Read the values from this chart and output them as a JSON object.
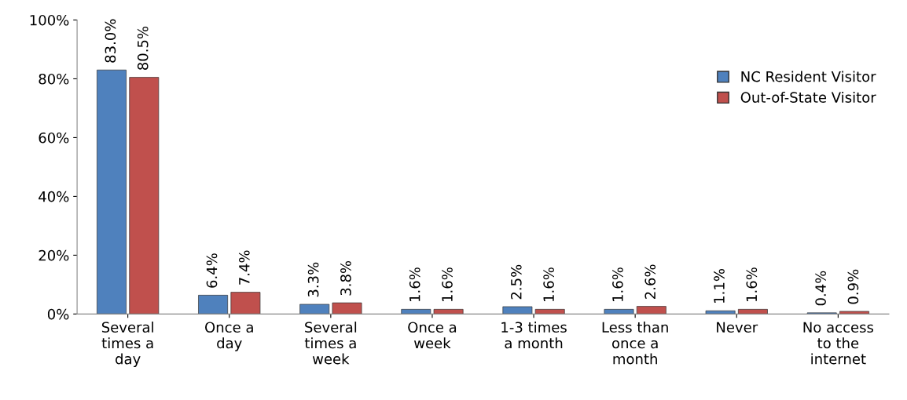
{
  "chart_data": {
    "type": "bar",
    "categories": [
      "Several\ntimes a\nday",
      "Once a\nday",
      "Several\ntimes a\nweek",
      "Once a\nweek",
      "1-3 times\na month",
      "Less than\nonce a\nmonth",
      "Never",
      "No access\nto the\ninternet"
    ],
    "series": [
      {
        "name": "NC Resident Visitor",
        "color": "#4f81bd",
        "values": [
          83.0,
          6.4,
          3.3,
          1.6,
          2.5,
          1.6,
          1.1,
          0.4
        ],
        "value_labels": [
          "83.0%",
          "6.4%",
          "3.3%",
          "1.6%",
          "2.5%",
          "1.6%",
          "1.1%",
          "0.4%"
        ]
      },
      {
        "name": "Out-of-State Visitor",
        "color": "#c0504d",
        "values": [
          80.5,
          7.4,
          3.8,
          1.6,
          1.6,
          2.6,
          1.6,
          0.9
        ],
        "value_labels": [
          "80.5%",
          "7.4%",
          "3.8%",
          "1.6%",
          "1.6%",
          "2.6%",
          "1.6%",
          "0.9%"
        ]
      }
    ],
    "ylim": [
      0,
      100
    ],
    "yticks": [
      {
        "value": 0,
        "label": "0%"
      },
      {
        "value": 20,
        "label": "20%"
      },
      {
        "value": 40,
        "label": "40%"
      },
      {
        "value": 60,
        "label": "60%"
      },
      {
        "value": 80,
        "label": "80%"
      },
      {
        "value": 100,
        "label": "100%"
      }
    ],
    "grid": false,
    "legend": "top right"
  }
}
